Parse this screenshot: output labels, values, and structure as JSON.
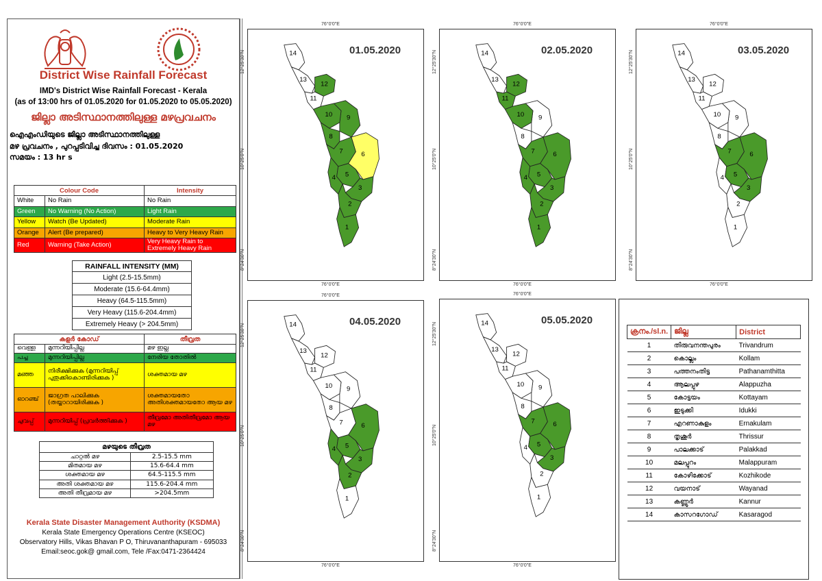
{
  "header": {
    "title": "District Wise Rainfall Forecast",
    "sub1": "IMD's District Wise Rainfall Forecast - Kerala",
    "sub2": "(as of 13:00 hrs of 01.05.2020  for 01.05.2020  to 05.05.2020)",
    "mal_title": "ജില്ലാ അടിസ്ഥാനത്തിലുള്ള മഴപ്രവചനം",
    "mal1": "ഐഎംഡിയുടെ ജില്ലാ   അടിസ്ഥാനത്തിലുള്ള",
    "mal2": "മഴ പ്രവചനം  , പുറപ്പടിവിച്ച       ദിവസം : 01.05.2020",
    "mal3": "സമയം : 13  hr s"
  },
  "colors": {
    "green": "#4a9a2a",
    "yellow": "#ffff66",
    "orange": "#f5a623",
    "red": "#ff1a1a",
    "white": "#ffffff",
    "legend_green": "#2ea84a",
    "legend_yellow": "#ffff00",
    "legend_orange": "#f7a500",
    "legend_red": "#ff0000"
  },
  "legend_en": {
    "headers": [
      "Colour Code",
      "Intensity"
    ],
    "rows": [
      {
        "color": "White",
        "code": "No Rain",
        "intensity": "No Rain"
      },
      {
        "color": "Green",
        "code": "No Warning (No Action)",
        "intensity": "Light Rain"
      },
      {
        "color": "Yellow",
        "code": "Watch (Be Updated)",
        "intensity": "Moderate Rain"
      },
      {
        "color": "Orange",
        "code": "Alert (Be prepared)",
        "intensity": "Heavy to Very Heavy Rain"
      },
      {
        "color": "Red",
        "code": "Warning (Take Action)",
        "intensity": "Very Heavy Rain to Extremely Heavy Rain"
      }
    ]
  },
  "rainfall_intensity": {
    "title": "RAINFALL INTENSITY (MM)",
    "rows": [
      "Light (2.5-15.5mm)",
      "Moderate (15.6-64.4mm)",
      "Heavy (64.5-115.5mm)",
      "Very Heavy (115.6-204.4mm)",
      "Extremely Heavy (> 204.5mm)"
    ]
  },
  "legend_ml": {
    "headers": [
      "കളർ കോഡ്",
      "തീവ്രത"
    ],
    "rows": [
      {
        "color": "വെള്ള",
        "code": "മുന്നറിയിപ്പില്ല",
        "intensity": "മഴ ഇല്ല"
      },
      {
        "color": "പച്ച",
        "code": "മുന്നറിയിപ്പില്ല",
        "intensity": "നേരിയ തോതിൽ"
      },
      {
        "color": "മഞ്ഞ",
        "code": "നിരീക്ഷിക്കുക (മുന്നറിയിപ്പ് പുതുക്കികൊണ്ടിരിക്കുക )",
        "intensity": "ശക്തമായ മഴ"
      },
      {
        "color": "ഓറഞ്ച്",
        "code": "ജാഗ്രത പാലിക്കുക (തയ്യാറായിരിക്കുക )",
        "intensity": "ശക്തമായതോ അതിശക്തമായതോ ആയ മഴ"
      },
      {
        "color": "ചുവപ്പ്",
        "code": "മുന്നറിയിപ്പ് (പ്രവർത്തിക്കുക )",
        "intensity": "തീവ്രമോ അതിതീവ്രമോ ആയ മഴ"
      }
    ]
  },
  "rainfall_intensity_ml": {
    "title": "മഴയുടെ തീവ്രത",
    "rows": [
      {
        "label": "ചാറ്റൽ മഴ",
        "range": "2.5-15.5 mm"
      },
      {
        "label": "മിതമായ മഴ",
        "range": "15.6-64.4 mm"
      },
      {
        "label": "ശക്തമായ മഴ",
        "range": "64.5-115.5 mm"
      },
      {
        "label": "അതി ശക്തമായ മഴ",
        "range": "115.6-204.4 mm"
      },
      {
        "label": "അതി തീവ്രമായ മഴ",
        "range": ">204.5mm"
      }
    ]
  },
  "footer": {
    "org": "Kerala State Disaster Management Authority (KSDMA)",
    "centre": "Kerala State Emergency Operations Centre (KSEOC)",
    "address": "Observatory Hills, Vikas Bhavan P O, Thiruvananthapuram - 695033",
    "contact": "Email:seoc.gok@ gmail.com, Tele /Fax:0471-2364424"
  },
  "map_labels": {
    "lon": "76°0'0\"E",
    "lat_top": "12°25'30\"N",
    "lat_mid": "10°25'0\"N",
    "lat_bot": "8°24'30\"N"
  },
  "maps": [
    {
      "date": "01.05.2020",
      "green": [
        1,
        2,
        3,
        4,
        5,
        7,
        8,
        9,
        10,
        12
      ],
      "yellow": [
        6
      ]
    },
    {
      "date": "02.05.2020",
      "green": [
        1,
        2,
        3,
        4,
        5,
        6,
        7,
        10,
        11,
        12
      ],
      "yellow": []
    },
    {
      "date": "03.05.2020",
      "green": [
        3,
        5,
        6,
        7
      ],
      "yellow": []
    },
    {
      "date": "04.05.2020",
      "green": [
        2,
        3,
        4,
        5,
        6
      ],
      "yellow": []
    },
    {
      "date": "05.05.2020",
      "green": [
        3,
        5,
        6,
        7
      ],
      "yellow": []
    }
  ],
  "district_table": {
    "headers": [
      "ക്രനം./sl.n.",
      "ജില്ല",
      "District"
    ],
    "rows": [
      {
        "n": "1",
        "ml": "തിരുവനന്തപുരം",
        "en": "Trivandrum"
      },
      {
        "n": "2",
        "ml": "കൊല്ലം",
        "en": "Kollam"
      },
      {
        "n": "3",
        "ml": "പത്തനംതിട്ട",
        "en": "Pathanamthitta"
      },
      {
        "n": "4",
        "ml": "ആലപ്പുഴ",
        "en": "Alappuzha"
      },
      {
        "n": "5",
        "ml": "കോട്ടയം",
        "en": "Kottayam"
      },
      {
        "n": "6",
        "ml": "ഇടുക്കി",
        "en": "Idukki"
      },
      {
        "n": "7",
        "ml": "എറണാകുളം",
        "en": "Ernakulam"
      },
      {
        "n": "8",
        "ml": "തൃശൂർ",
        "en": "Thrissur"
      },
      {
        "n": "9",
        "ml": "പാലക്കാട്",
        "en": "Palakkad"
      },
      {
        "n": "10",
        "ml": "മലപ്പുറം",
        "en": "Malappuram"
      },
      {
        "n": "11",
        "ml": "കോഴിക്കോട്",
        "en": "Kozhikode"
      },
      {
        "n": "12",
        "ml": "വയനാട്",
        "en": "Wayanad"
      },
      {
        "n": "13",
        "ml": "കണ്ണൂർ",
        "en": "Kannur"
      },
      {
        "n": "14",
        "ml": "കാസറഗോഡ്",
        "en": "Kasaragod"
      }
    ]
  }
}
